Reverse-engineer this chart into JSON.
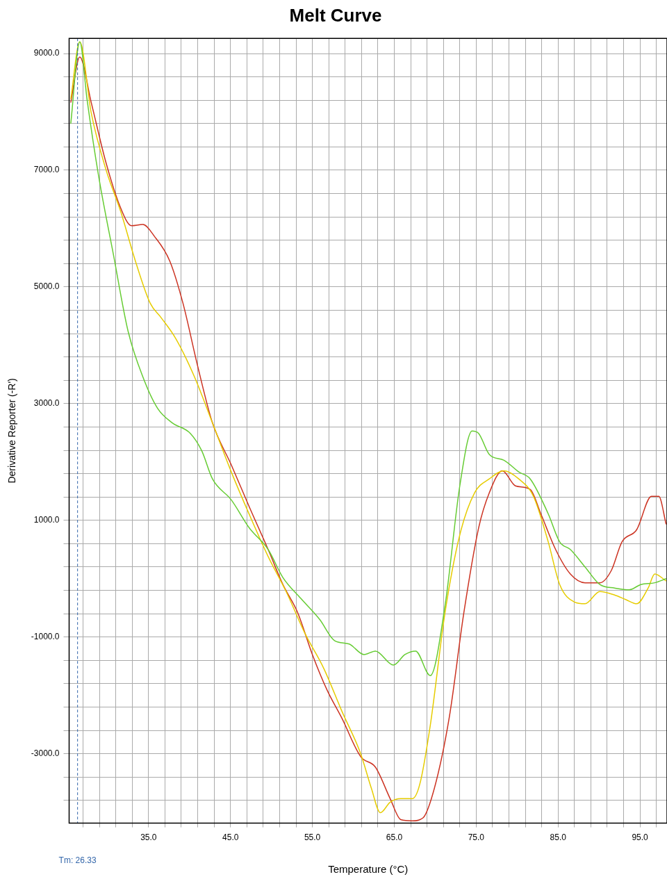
{
  "chart_data": {
    "type": "line",
    "title": "Melt Curve",
    "xlabel": "Temperature (°C)",
    "ylabel": "Derivative Reporter (-R')",
    "xlim": [
      25.3,
      98.3
    ],
    "ylim": [
      -4190,
      9260
    ],
    "xticks": [
      {
        "value": 27,
        "label": null
      },
      {
        "value": 29,
        "label": null
      },
      {
        "value": 31,
        "label": null
      },
      {
        "value": 33,
        "label": null
      },
      {
        "value": 35,
        "label": "35.0"
      },
      {
        "value": 37,
        "label": null
      },
      {
        "value": 39,
        "label": null
      },
      {
        "value": 41,
        "label": null
      },
      {
        "value": 43,
        "label": null
      },
      {
        "value": 45,
        "label": "45.0"
      },
      {
        "value": 47,
        "label": null
      },
      {
        "value": 49,
        "label": null
      },
      {
        "value": 51,
        "label": null
      },
      {
        "value": 53,
        "label": null
      },
      {
        "value": 55,
        "label": "55.0"
      },
      {
        "value": 57,
        "label": null
      },
      {
        "value": 59,
        "label": null
      },
      {
        "value": 61,
        "label": null
      },
      {
        "value": 63,
        "label": null
      },
      {
        "value": 65,
        "label": "65.0"
      },
      {
        "value": 67,
        "label": null
      },
      {
        "value": 69,
        "label": null
      },
      {
        "value": 71,
        "label": null
      },
      {
        "value": 73,
        "label": null
      },
      {
        "value": 75,
        "label": "75.0"
      },
      {
        "value": 77,
        "label": null
      },
      {
        "value": 79,
        "label": null
      },
      {
        "value": 81,
        "label": null
      },
      {
        "value": 83,
        "label": null
      },
      {
        "value": 85,
        "label": "85.0"
      },
      {
        "value": 87,
        "label": null
      },
      {
        "value": 89,
        "label": null
      },
      {
        "value": 91,
        "label": null
      },
      {
        "value": 93,
        "label": null
      },
      {
        "value": 95,
        "label": "95.0"
      },
      {
        "value": 97,
        "label": null
      }
    ],
    "yticks": [
      {
        "value": -3800,
        "label": null
      },
      {
        "value": -3400,
        "label": null
      },
      {
        "value": -3000,
        "label": "-3000.0"
      },
      {
        "value": -2600,
        "label": null
      },
      {
        "value": -2200,
        "label": null
      },
      {
        "value": -1800,
        "label": null
      },
      {
        "value": -1400,
        "label": null
      },
      {
        "value": -1000,
        "label": "-1000.0"
      },
      {
        "value": -600,
        "label": null
      },
      {
        "value": -200,
        "label": null
      },
      {
        "value": 200,
        "label": null
      },
      {
        "value": 600,
        "label": null
      },
      {
        "value": 1000,
        "label": "1000.0"
      },
      {
        "value": 1400,
        "label": null
      },
      {
        "value": 1800,
        "label": null
      },
      {
        "value": 2200,
        "label": null
      },
      {
        "value": 2600,
        "label": null
      },
      {
        "value": 3000,
        "label": "3000.0"
      },
      {
        "value": 3400,
        "label": null
      },
      {
        "value": 3800,
        "label": null
      },
      {
        "value": 4200,
        "label": null
      },
      {
        "value": 4600,
        "label": null
      },
      {
        "value": 5000,
        "label": "5000.0"
      },
      {
        "value": 5400,
        "label": null
      },
      {
        "value": 5800,
        "label": null
      },
      {
        "value": 6200,
        "label": null
      },
      {
        "value": 6600,
        "label": null
      },
      {
        "value": 7000,
        "label": "7000.0"
      },
      {
        "value": 7400,
        "label": null
      },
      {
        "value": 7800,
        "label": null
      },
      {
        "value": 8200,
        "label": null
      },
      {
        "value": 8600,
        "label": null
      },
      {
        "value": 9000,
        "label": "9000.0"
      }
    ],
    "grid": true,
    "legend": false,
    "marker": "none",
    "line_style": "solid",
    "ref_lines": [
      {
        "axis": "x",
        "value": 26.33,
        "label": "Tm: 26.33",
        "color": "#3366aa",
        "line_style": "dashed"
      }
    ],
    "series": [
      {
        "color": "#66cc33",
        "x": [
          25.5,
          26.6,
          27.5,
          28.9,
          30.7,
          32.5,
          34.3,
          36.1,
          37.9,
          40.1,
          41.5,
          42.8,
          45.1,
          47.3,
          49.6,
          51.4,
          53.6,
          55.9,
          57.7,
          59.5,
          61.3,
          62.7,
          64.9,
          66.3,
          67.6,
          69.4,
          71.2,
          73.0,
          74.5,
          75.3,
          76.6,
          78.4,
          80.2,
          81.6,
          83.8,
          85.2,
          86.5,
          88.3,
          90.1,
          91.9,
          93.7,
          95.1,
          96.8,
          98.2
        ],
        "values": [
          7800,
          9200,
          8200,
          6900,
          5560,
          4240,
          3460,
          2920,
          2670,
          2490,
          2190,
          1710,
          1350,
          870,
          500,
          20,
          -340,
          -700,
          -1060,
          -1120,
          -1300,
          -1240,
          -1480,
          -1300,
          -1240,
          -1660,
          -460,
          1590,
          2530,
          2490,
          2130,
          2030,
          1830,
          1710,
          1110,
          630,
          500,
          200,
          -100,
          -160,
          -190,
          -100,
          -70,
          0
        ]
      },
      {
        "color": "#e6cc00",
        "x": [
          25.5,
          26.6,
          28.0,
          29.8,
          31.6,
          33.4,
          35.2,
          36.5,
          38.3,
          40.6,
          42.8,
          45.1,
          47.3,
          49.6,
          51.8,
          54.1,
          56.4,
          58.6,
          60.9,
          62.2,
          63.3,
          64.5,
          65.8,
          67.2,
          68.1,
          69.4,
          71.2,
          73.0,
          74.8,
          76.6,
          78.4,
          80.2,
          82.0,
          83.8,
          85.2,
          87.0,
          88.3,
          90.1,
          91.9,
          93.3,
          94.6,
          96.0,
          96.8,
          98.2
        ],
        "values": [
          8220,
          9200,
          7980,
          7010,
          6290,
          5440,
          4720,
          4480,
          4120,
          3460,
          2670,
          1830,
          1100,
          380,
          -220,
          -940,
          -1540,
          -2270,
          -3000,
          -3590,
          -4010,
          -3830,
          -3770,
          -3770,
          -3530,
          -2510,
          -580,
          750,
          1470,
          1710,
          1850,
          1710,
          1410,
          630,
          -100,
          -400,
          -430,
          -220,
          -280,
          -360,
          -430,
          -160,
          80,
          -40
        ]
      },
      {
        "color": "#cc3322",
        "x": [
          25.5,
          26.6,
          28.0,
          29.8,
          31.6,
          32.9,
          34.3,
          35.7,
          37.6,
          39.2,
          41.0,
          42.8,
          45.1,
          47.3,
          49.6,
          51.4,
          53.2,
          55.0,
          56.8,
          58.6,
          60.9,
          62.7,
          64.5,
          65.8,
          67.2,
          68.5,
          69.9,
          71.7,
          73.5,
          75.3,
          76.6,
          78.2,
          79.8,
          81.6,
          82.9,
          84.7,
          86.5,
          88.3,
          90.1,
          91.5,
          92.8,
          94.6,
          96.4,
          97.3,
          98.2
        ],
        "values": [
          8160,
          8940,
          8160,
          7130,
          6350,
          6050,
          6070,
          5870,
          5440,
          4720,
          3640,
          2670,
          1950,
          1230,
          500,
          -100,
          -580,
          -1300,
          -1910,
          -2390,
          -3050,
          -3230,
          -3770,
          -4130,
          -4150,
          -4100,
          -3590,
          -2390,
          -580,
          870,
          1470,
          1850,
          1590,
          1530,
          1110,
          500,
          80,
          -70,
          -70,
          140,
          630,
          840,
          1410,
          1410,
          930
        ]
      }
    ]
  }
}
